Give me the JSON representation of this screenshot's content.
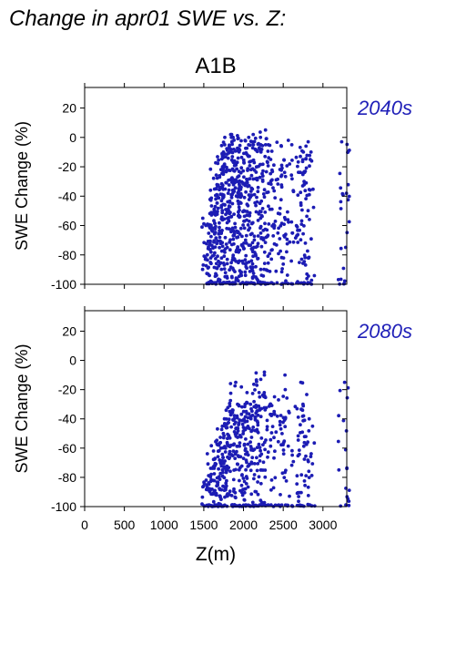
{
  "figure": {
    "title": "Change in apr01 SWE vs. Z:",
    "scenario": "A1B",
    "xlabel": "Z(m)"
  },
  "colors": {
    "points": "#1c1cb4",
    "period_label": "#2020b8",
    "axes": "#000000"
  },
  "chart_data": [
    {
      "type": "scatter",
      "period": "2040s",
      "xlabel": "",
      "ylabel": "SWE Change (%)",
      "xlim": [
        0,
        3300
      ],
      "ylim": [
        -100,
        34
      ],
      "xticks": [
        0,
        500,
        1000,
        1500,
        2000,
        2500,
        3000
      ],
      "yticks": [
        -100,
        -80,
        -60,
        -40,
        -20,
        0,
        20
      ],
      "grid": false,
      "columns": [
        {
          "x": 1540,
          "top": -55,
          "n": 26
        },
        {
          "x": 1580,
          "top": -42,
          "n": 30
        },
        {
          "x": 1620,
          "top": -35,
          "n": 32
        },
        {
          "x": 1660,
          "top": -20,
          "n": 36
        },
        {
          "x": 1700,
          "top": -10,
          "n": 38
        },
        {
          "x": 1740,
          "top": -5,
          "n": 40
        },
        {
          "x": 1780,
          "top": 0,
          "n": 42
        },
        {
          "x": 1820,
          "top": 0,
          "n": 42
        },
        {
          "x": 1860,
          "top": 2,
          "n": 44
        },
        {
          "x": 1900,
          "top": 2,
          "n": 44
        },
        {
          "x": 1940,
          "top": 0,
          "n": 42
        },
        {
          "x": 1980,
          "top": -2,
          "n": 40
        },
        {
          "x": 2020,
          "top": 0,
          "n": 40
        },
        {
          "x": 2060,
          "top": -5,
          "n": 36
        },
        {
          "x": 2110,
          "top": -5,
          "n": 34
        },
        {
          "x": 2150,
          "top": 0,
          "n": 32
        },
        {
          "x": 2190,
          "top": 2,
          "n": 32
        },
        {
          "x": 2230,
          "top": 5,
          "n": 32
        },
        {
          "x": 2280,
          "top": -5,
          "n": 30
        },
        {
          "x": 2320,
          "top": -5,
          "n": 30
        },
        {
          "x": 2380,
          "top": -15,
          "n": 18
        },
        {
          "x": 2500,
          "top": -2,
          "n": 30
        },
        {
          "x": 2540,
          "top": -5,
          "n": 30
        },
        {
          "x": 2690,
          "top": -10,
          "n": 22
        },
        {
          "x": 2740,
          "top": -3,
          "n": 28
        },
        {
          "x": 2780,
          "top": -10,
          "n": 24
        },
        {
          "x": 2820,
          "top": -15,
          "n": 24
        },
        {
          "x": 3260,
          "top": -3,
          "n": 26
        }
      ]
    },
    {
      "type": "scatter",
      "period": "2080s",
      "xlabel": "Z(m)",
      "ylabel": "SWE Change (%)",
      "xlim": [
        0,
        3300
      ],
      "ylim": [
        -100,
        34
      ],
      "xticks": [
        0,
        500,
        1000,
        1500,
        2000,
        2500,
        3000
      ],
      "yticks": [
        -100,
        -80,
        -60,
        -40,
        -20,
        0,
        20
      ],
      "grid": false,
      "columns": [
        {
          "x": 1540,
          "top": -78,
          "n": 16
        },
        {
          "x": 1580,
          "top": -72,
          "n": 18
        },
        {
          "x": 1620,
          "top": -62,
          "n": 20
        },
        {
          "x": 1660,
          "top": -58,
          "n": 22
        },
        {
          "x": 1700,
          "top": -50,
          "n": 24
        },
        {
          "x": 1740,
          "top": -45,
          "n": 26
        },
        {
          "x": 1780,
          "top": -40,
          "n": 28
        },
        {
          "x": 1820,
          "top": -35,
          "n": 28
        },
        {
          "x": 1860,
          "top": -30,
          "n": 28
        },
        {
          "x": 1900,
          "top": -15,
          "n": 30
        },
        {
          "x": 1940,
          "top": -35,
          "n": 28
        },
        {
          "x": 1980,
          "top": -38,
          "n": 26
        },
        {
          "x": 2020,
          "top": -30,
          "n": 26
        },
        {
          "x": 2060,
          "top": -35,
          "n": 24
        },
        {
          "x": 2110,
          "top": -22,
          "n": 24
        },
        {
          "x": 2150,
          "top": -30,
          "n": 22
        },
        {
          "x": 2190,
          "top": -10,
          "n": 24
        },
        {
          "x": 2230,
          "top": -8,
          "n": 22
        },
        {
          "x": 2280,
          "top": -25,
          "n": 20
        },
        {
          "x": 2320,
          "top": -22,
          "n": 20
        },
        {
          "x": 2380,
          "top": -35,
          "n": 12
        },
        {
          "x": 2500,
          "top": -10,
          "n": 24
        },
        {
          "x": 2540,
          "top": -20,
          "n": 22
        },
        {
          "x": 2690,
          "top": -30,
          "n": 18
        },
        {
          "x": 2740,
          "top": -15,
          "n": 22
        },
        {
          "x": 2780,
          "top": -40,
          "n": 16
        },
        {
          "x": 2820,
          "top": -45,
          "n": 14
        },
        {
          "x": 3260,
          "top": -15,
          "n": 20
        }
      ]
    }
  ]
}
